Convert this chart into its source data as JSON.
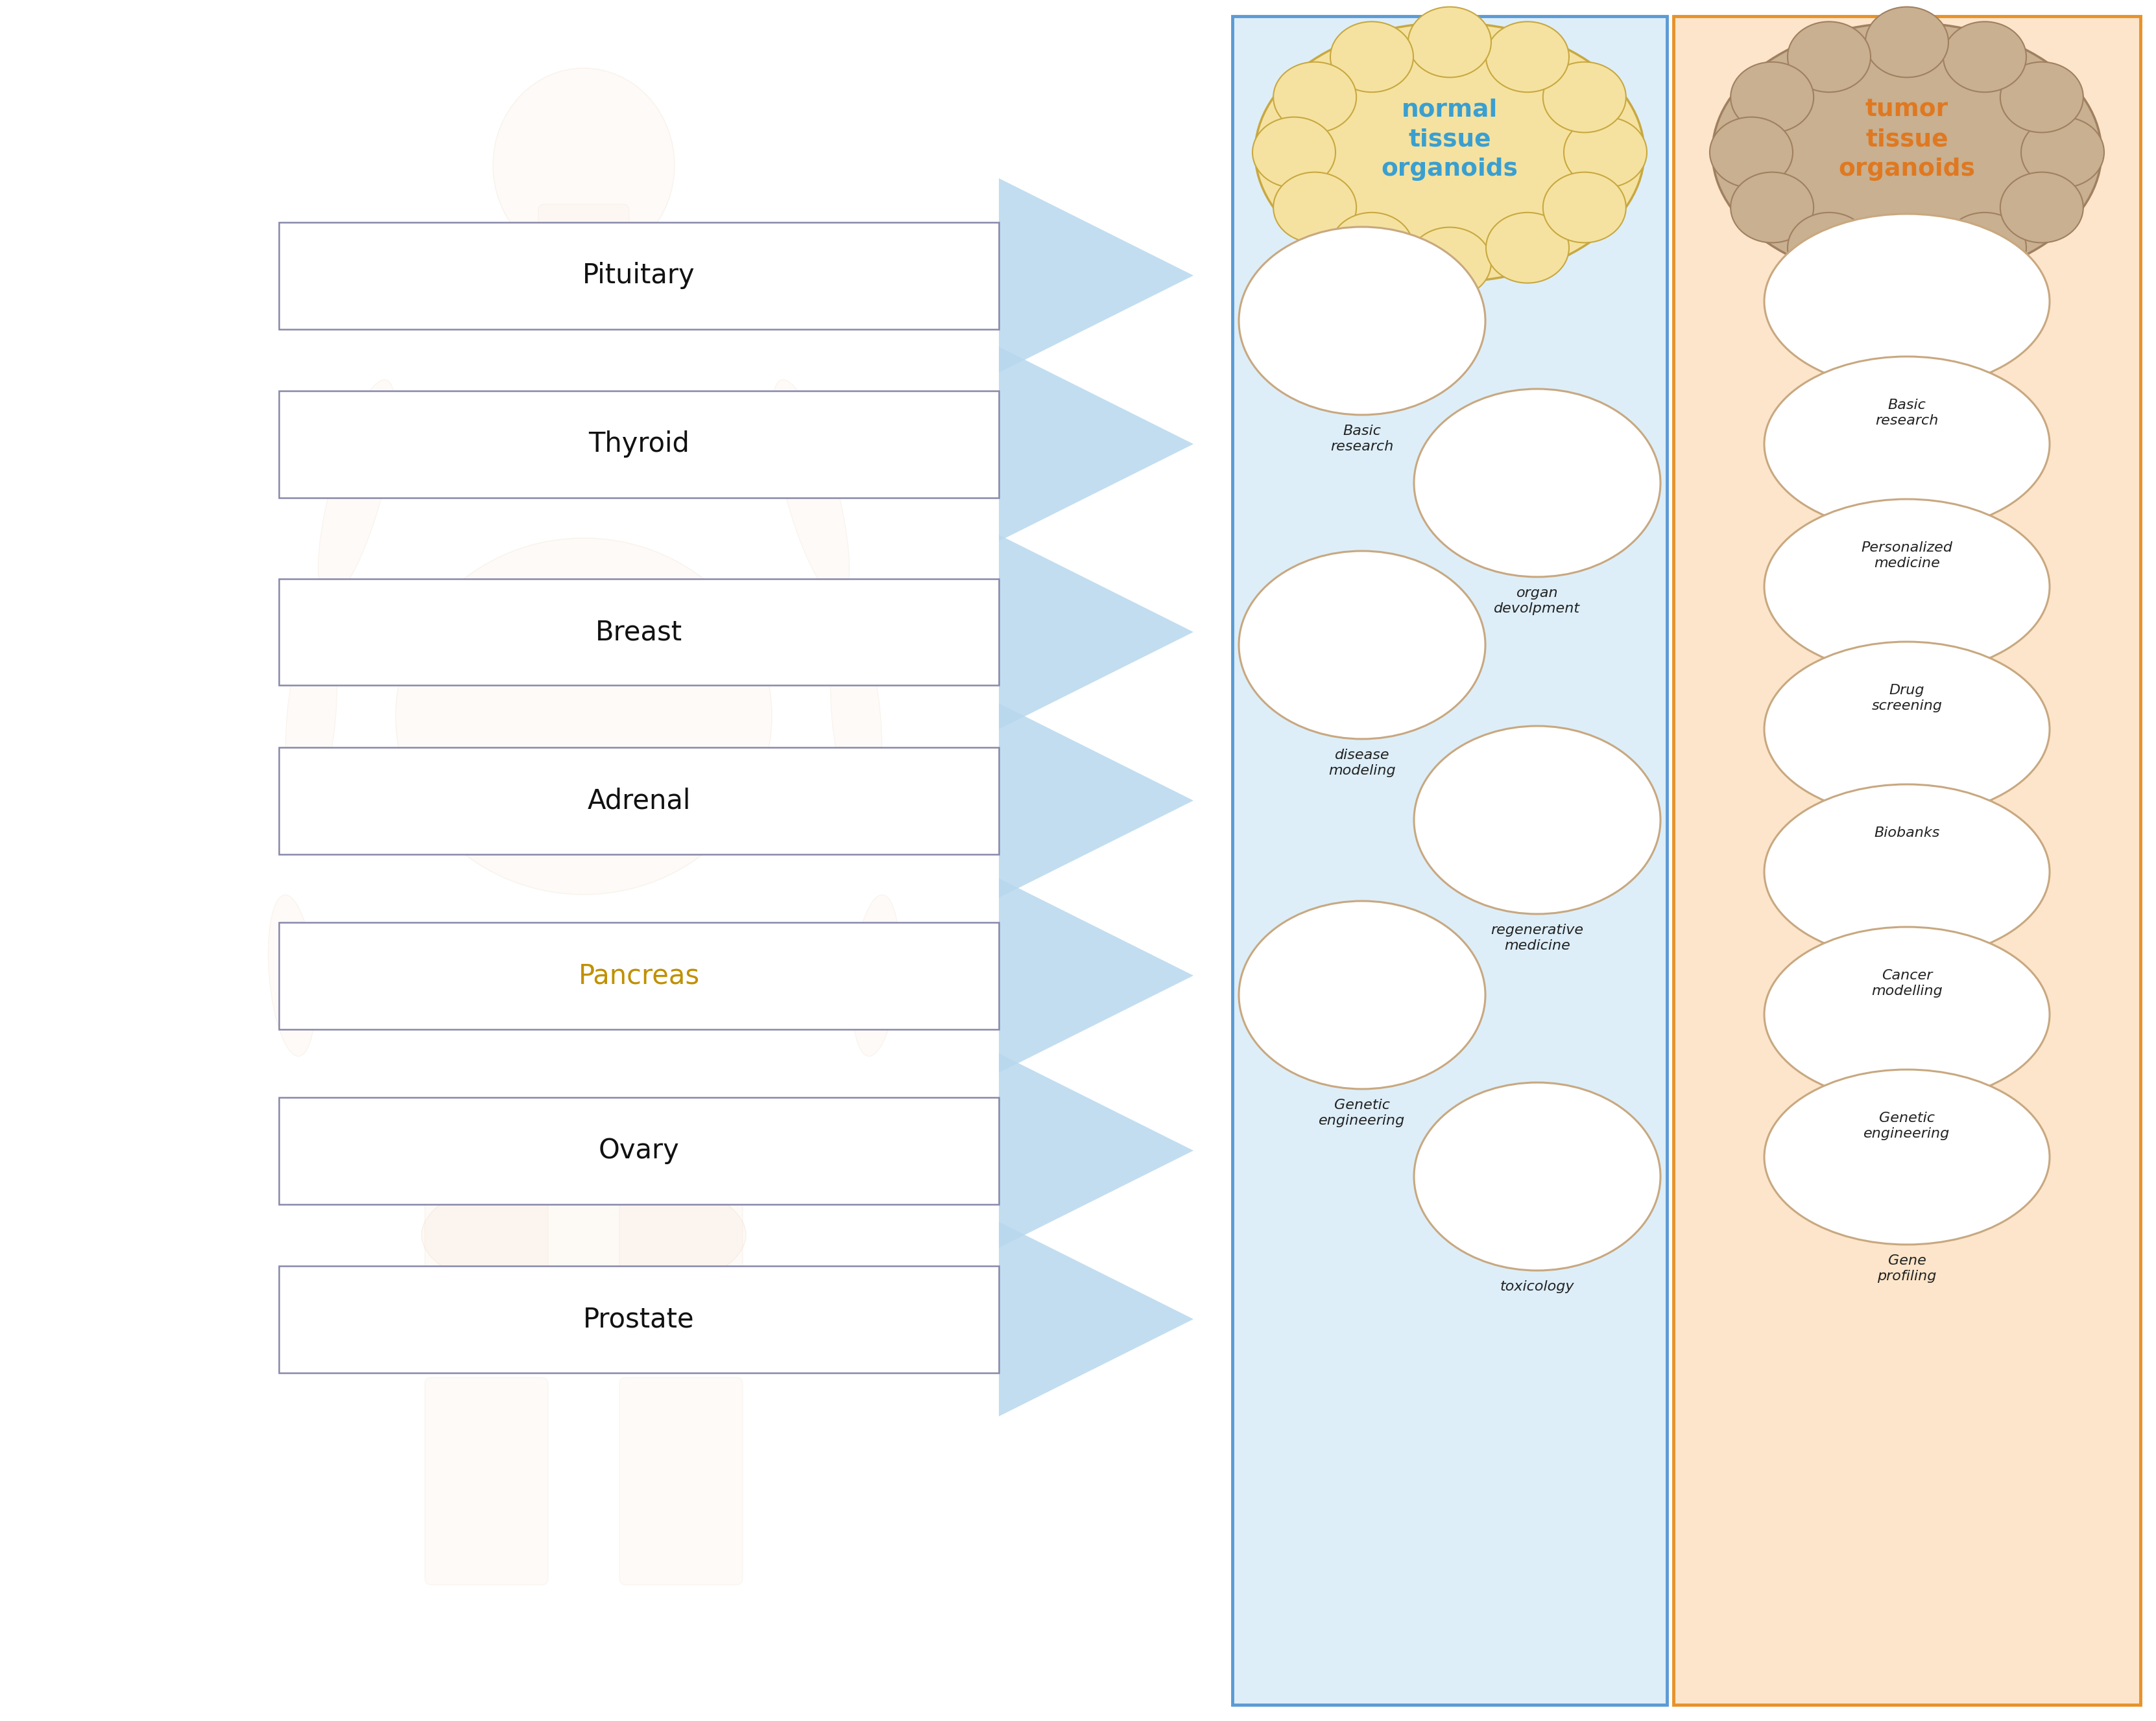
{
  "fig_width": 33.24,
  "fig_height": 26.55,
  "bg_color": "#ffffff",
  "left_panel_facecolor": "#ddeef8",
  "left_panel_edge": "#5b9bd5",
  "right_panel_facecolor": "#fce5ca",
  "right_panel_edge": "#e8922a",
  "arrow_color": "#b8d8ee",
  "normal_title": "normal\ntissue\norganoids",
  "tumor_title": "tumor\ntissue\norganoids",
  "normal_title_color": "#3a9fd0",
  "tumor_title_color": "#e07820",
  "normal_cloud_face": "#f5e2a0",
  "normal_cloud_edge": "#c8a840",
  "tumor_cloud_face": "#c8b090",
  "tumor_cloud_edge": "#a08060",
  "organ_labels": [
    "Pituitary",
    "Thyroid",
    "Breast",
    "Adrenal",
    "Pancreas",
    "Ovary",
    "Prostate"
  ],
  "organ_label_color": "#111111",
  "pancreas_label_color": "#c09000",
  "box_facecolor": "#ffffff",
  "box_edgecolor": "#8888aa",
  "normal_items": [
    "Basic\nresearch",
    "organ\ndevolpment",
    "disease\nmodeling",
    "regenerative\nmedicine",
    "Genetic\nengineering",
    "toxicology"
  ],
  "normal_item_align": [
    "left",
    "right",
    "left",
    "right",
    "left",
    "right"
  ],
  "tumor_items": [
    "Basic\nresearch",
    "Personalized\nmedicine",
    "Drug\nscreening",
    "Biobanks",
    "Cancer\nmodelling",
    "Genetic\nengineering",
    "Gene\nprofiling"
  ],
  "oval_face": "#ffffff",
  "oval_edge": "#c8a880",
  "item_text_color": "#222222"
}
